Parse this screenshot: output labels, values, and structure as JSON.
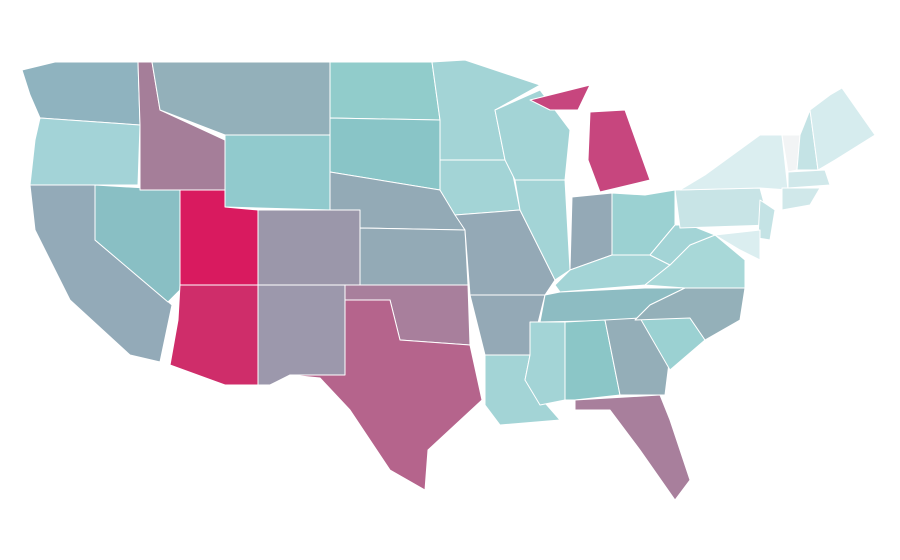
{
  "map": {
    "regions": [
      {
        "color": "#8fb3bf"
      },
      {
        "color": "#a3d3d7"
      },
      {
        "color": "#93aab8"
      },
      {
        "color": "#89bfc4"
      },
      {
        "color": "#a57e99"
      },
      {
        "color": "#93b0ba"
      },
      {
        "color": "#91cacd"
      },
      {
        "color": "#d91a5f"
      },
      {
        "color": "#cf2d6a"
      },
      {
        "color": "#9b97aa"
      },
      {
        "color": "#9c98ac"
      },
      {
        "color": "#91cccb"
      },
      {
        "color": "#89c5c7"
      },
      {
        "color": "#93aab6"
      },
      {
        "color": "#93aab6"
      },
      {
        "color": "#a87f9c"
      },
      {
        "color": "#b5648c"
      },
      {
        "color": "#a3d4d6"
      },
      {
        "color": "#a3d4d6"
      },
      {
        "color": "#94a9b6"
      },
      {
        "color": "#94a9b6"
      },
      {
        "color": "#a3d4d6"
      },
      {
        "color": "#a3d4d6"
      },
      {
        "color": "#a3d4d6"
      },
      {
        "color": "#c7467e"
      },
      {
        "color": "#94a9b6"
      },
      {
        "color": "#9bd1d2"
      },
      {
        "color": "#a3d4d6"
      },
      {
        "color": "#8dbcc2"
      },
      {
        "color": "#a3d4d6"
      },
      {
        "color": "#8bc6c7"
      },
      {
        "color": "#94aeb8"
      },
      {
        "color": "#a87f9c"
      },
      {
        "color": "#9bd1d2"
      },
      {
        "color": "#94b0b9"
      },
      {
        "color": "#a8d8d8"
      },
      {
        "color": "#a3d4d6"
      },
      {
        "color": "#c8e4e6"
      },
      {
        "color": "#dbeef0"
      },
      {
        "color": "#f2f4f5"
      },
      {
        "color": "#c4e3e5"
      },
      {
        "color": "#d6ecee"
      },
      {
        "color": "#d0e8ea"
      },
      {
        "color": "#d0e8ea"
      },
      {
        "color": "#c4e3e5"
      },
      {
        "color": "#dbeef0"
      }
    ]
  }
}
